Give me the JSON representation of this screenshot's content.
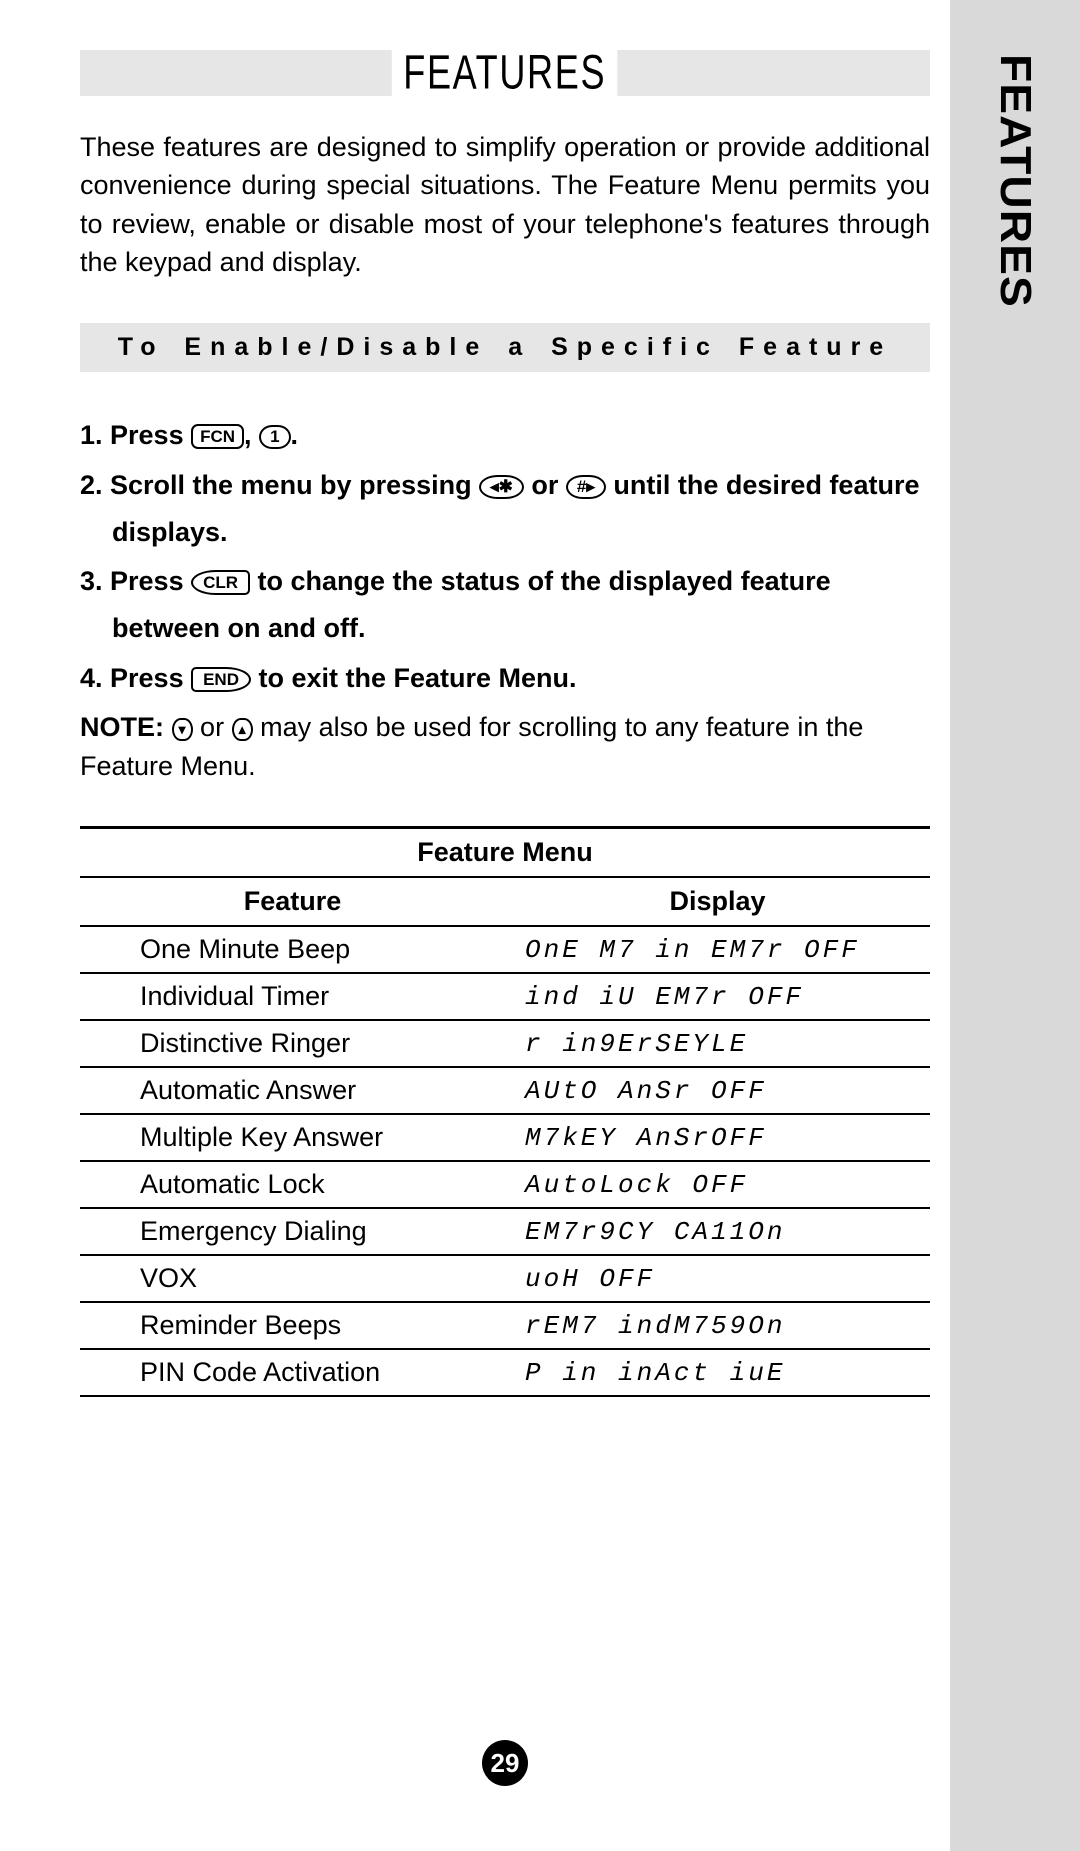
{
  "colors": {
    "page_bg": "#ffffff",
    "band_bg": "#e6e6e6",
    "side_bg": "#d9d9d9",
    "text": "#000000"
  },
  "sideTab": "FEATURES",
  "title": "FEATURES",
  "intro": "These features are designed to simplify operation or provide additional convenience during special situations. The Feature Menu permits you to review, enable or disable most of your telephone's features through the keypad and display.",
  "subhead": "To Enable/Disable a Specific Feature",
  "steps": {
    "s1a": "1. Press ",
    "s1_key1": "FCN",
    "s1b": ", ",
    "s1_key2": "1",
    "s1c": ".",
    "s2a": "2. Scroll the menu by pressing ",
    "s2_key1": "◂✱",
    "s2b": " or ",
    "s2_key2": "#▸",
    "s2c": " until the desired feature displays.",
    "s3a": "3. Press ",
    "s3_key1": "CLR",
    "s3b": " to change the status of the displayed feature between on and off.",
    "s4a": "4. Press ",
    "s4_key1": "END",
    "s4b": " to exit the Feature Menu."
  },
  "note": {
    "label": "NOTE:",
    "a": " ",
    "key1": "▾",
    "b": " or ",
    "key2": "▴",
    "c": " may also be used for scrolling to any feature in the Feature Menu."
  },
  "table": {
    "title": "Feature Menu",
    "head": {
      "c1": "Feature",
      "c2": "Display"
    },
    "rows": [
      {
        "feature": "One Minute Beep",
        "display": "OnE M7 in EM7r OFF"
      },
      {
        "feature": "Individual Timer",
        "display": "ind iU EM7r OFF"
      },
      {
        "feature": "Distinctive Ringer",
        "display": "r in9ErSEYLE"
      },
      {
        "feature": "Automatic Answer",
        "display": "AUtO AnSr OFF"
      },
      {
        "feature": "Multiple Key Answer",
        "display": "M7kEY AnSrOFF"
      },
      {
        "feature": "Automatic Lock",
        "display": "AutoLock OFF"
      },
      {
        "feature": "Emergency Dialing",
        "display": "EM7r9CY CA11On"
      },
      {
        "feature": "VOX",
        "display": "uoH OFF"
      },
      {
        "feature": "Reminder Beeps",
        "display": "rEM7 indM759On"
      },
      {
        "feature": "PIN Code Activation",
        "display": "P in  inAct iuE"
      }
    ]
  },
  "pageNumber": "29"
}
